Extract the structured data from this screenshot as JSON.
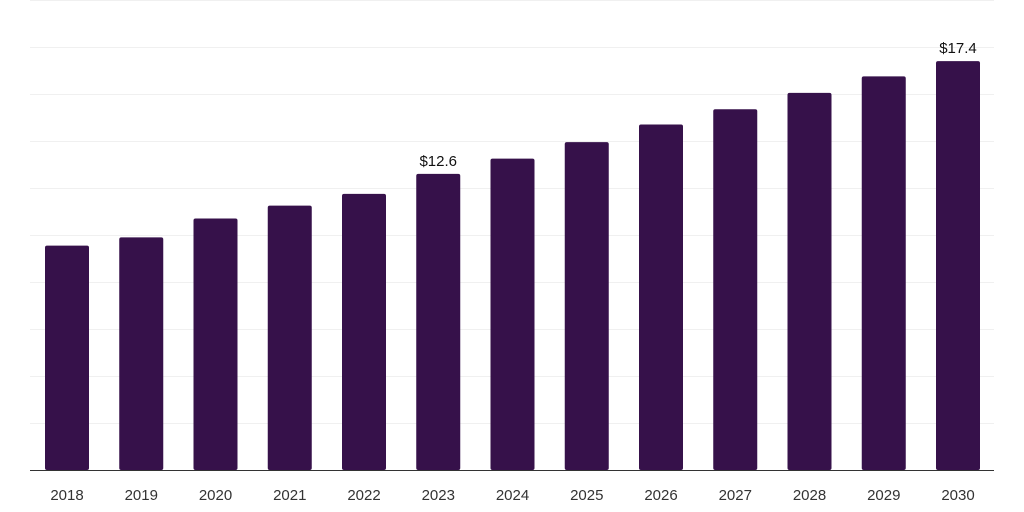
{
  "colors": {
    "bar": "#36114a",
    "grid": "#f0f0f0",
    "axis": "#333333"
  },
  "chart_data": {
    "type": "bar",
    "title": "",
    "xlabel": "",
    "ylabel": "",
    "categories": [
      "2018",
      "2019",
      "2020",
      "2021",
      "2022",
      "2023",
      "2024",
      "2025",
      "2026",
      "2027",
      "2028",
      "2029",
      "2030"
    ],
    "values": [
      9.55,
      9.9,
      10.7,
      11.25,
      11.75,
      12.6,
      13.25,
      13.95,
      14.7,
      15.35,
      16.05,
      16.75,
      17.4
    ],
    "data_labels": [
      {
        "index": 5,
        "text": "$12.6"
      },
      {
        "index": 12,
        "text": "$17.4"
      }
    ],
    "ylim": [
      0,
      20
    ],
    "grid": true,
    "gridline_count": 10,
    "legend": "none"
  }
}
